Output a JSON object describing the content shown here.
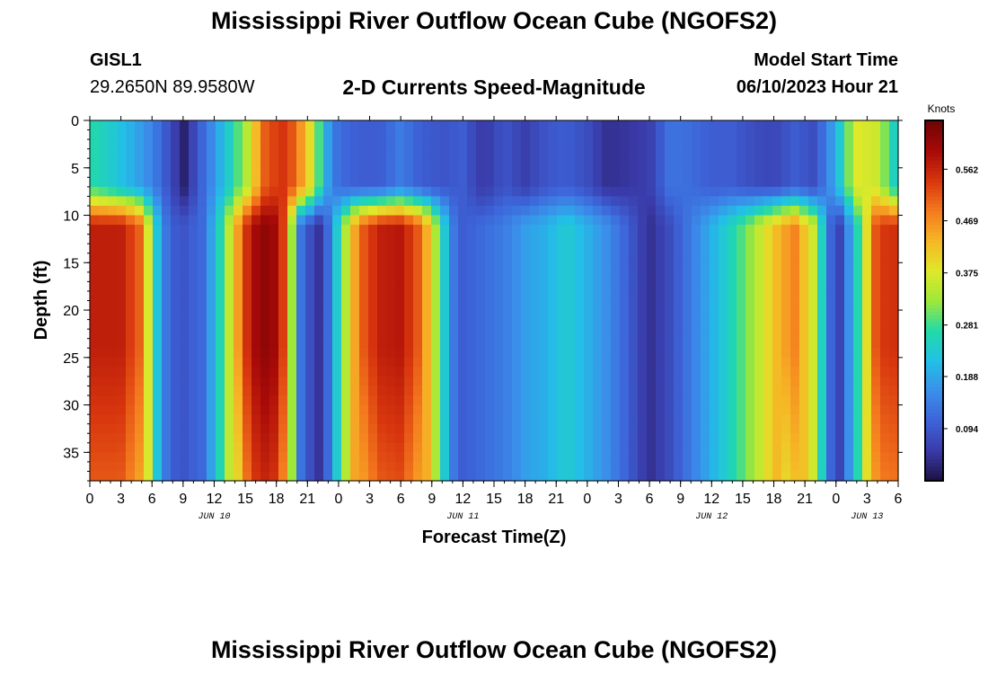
{
  "header": {
    "title": "Mississippi River Outflow Ocean Cube (NGOFS2)",
    "station": "GISL1",
    "coords": "29.2650N  89.9580W",
    "subtitle": "2-D Currents Speed-Magnitude",
    "model_start_label": "Model Start Time",
    "model_start_value": "06/10/2023 Hour 21"
  },
  "footer": {
    "title": "Mississippi River Outflow Ocean Cube (NGOFS2)"
  },
  "chart_data": {
    "type": "heatmap",
    "title": "2-D Currents Speed-Magnitude",
    "xlabel": "Forecast Time(Z)",
    "ylabel": "Depth (ft)",
    "x_range_hours": [
      0,
      78
    ],
    "x_tick_labels": [
      "0",
      "3",
      "6",
      "9",
      "12",
      "15",
      "18",
      "21",
      "0",
      "3",
      "6",
      "9",
      "12",
      "15",
      "18",
      "21",
      "0",
      "3",
      "6",
      "9",
      "12",
      "15",
      "18",
      "21",
      "0",
      "3",
      "6"
    ],
    "date_labels": [
      {
        "label": "JUN 10",
        "hour": 12
      },
      {
        "label": "JUN 11",
        "hour": 36
      },
      {
        "label": "JUN 12",
        "hour": 60
      },
      {
        "label": "JUN 13",
        "hour": 75
      }
    ],
    "y_range_ft": [
      0,
      38
    ],
    "y_inverted": true,
    "y_ticks": [
      0,
      5,
      10,
      15,
      20,
      25,
      30,
      35
    ],
    "colorbar": {
      "unit": "Knots",
      "range": [
        0.0,
        0.65
      ],
      "ticks": [
        0.094,
        0.188,
        0.281,
        0.375,
        0.469,
        0.562
      ],
      "tick_labels": [
        "0.094",
        "0.188",
        "0.281",
        "0.375",
        "0.469",
        "0.562"
      ],
      "colormap": [
        "#1c1040",
        "#3a3aa8",
        "#3d63d8",
        "#3b8eea",
        "#22c0e6",
        "#22d9a8",
        "#9ee83a",
        "#e0e82a",
        "#f6b626",
        "#f47a1e",
        "#d8360e",
        "#a70a08",
        "#6f0404"
      ]
    },
    "depth_bands_ft": [
      {
        "name": "surface",
        "top": 0,
        "bottom": 8
      },
      {
        "name": "lower",
        "top": 8,
        "bottom": 38
      }
    ],
    "surface_speed_knots": {
      "hours": [
        0,
        2,
        4,
        6,
        8,
        9,
        11,
        13,
        15,
        17,
        19,
        21,
        23,
        24,
        26,
        28,
        30,
        32,
        34,
        36,
        38,
        40,
        42,
        44,
        46,
        48,
        50,
        52,
        54,
        56,
        58,
        60,
        62,
        64,
        66,
        68,
        70,
        72,
        74,
        76,
        78
      ],
      "values": [
        0.27,
        0.24,
        0.2,
        0.15,
        0.07,
        0.02,
        0.12,
        0.22,
        0.33,
        0.52,
        0.55,
        0.42,
        0.18,
        0.12,
        0.1,
        0.1,
        0.14,
        0.1,
        0.09,
        0.1,
        0.05,
        0.09,
        0.06,
        0.09,
        0.1,
        0.08,
        0.04,
        0.05,
        0.06,
        0.13,
        0.12,
        0.1,
        0.1,
        0.08,
        0.07,
        0.1,
        0.08,
        0.2,
        0.38,
        0.36,
        0.22
      ]
    },
    "lower_speed_knots": {
      "hours": [
        0,
        3,
        5,
        6,
        7,
        8,
        9,
        11,
        13,
        15,
        16,
        17,
        18,
        19,
        20,
        22,
        23,
        24,
        26,
        28,
        30,
        32,
        34,
        35,
        36,
        38,
        40,
        42,
        44,
        46,
        48,
        50,
        52,
        54,
        56,
        58,
        60,
        62,
        64,
        66,
        68,
        70,
        72,
        74,
        76,
        78
      ],
      "values": [
        0.57,
        0.57,
        0.5,
        0.3,
        0.15,
        0.1,
        0.09,
        0.12,
        0.3,
        0.54,
        0.6,
        0.62,
        0.6,
        0.5,
        0.15,
        0.04,
        0.12,
        0.26,
        0.5,
        0.57,
        0.58,
        0.5,
        0.26,
        0.14,
        0.1,
        0.12,
        0.14,
        0.18,
        0.2,
        0.24,
        0.2,
        0.16,
        0.1,
        0.04,
        0.08,
        0.14,
        0.2,
        0.26,
        0.33,
        0.42,
        0.48,
        0.35,
        0.03,
        0.25,
        0.54,
        0.55
      ]
    }
  }
}
